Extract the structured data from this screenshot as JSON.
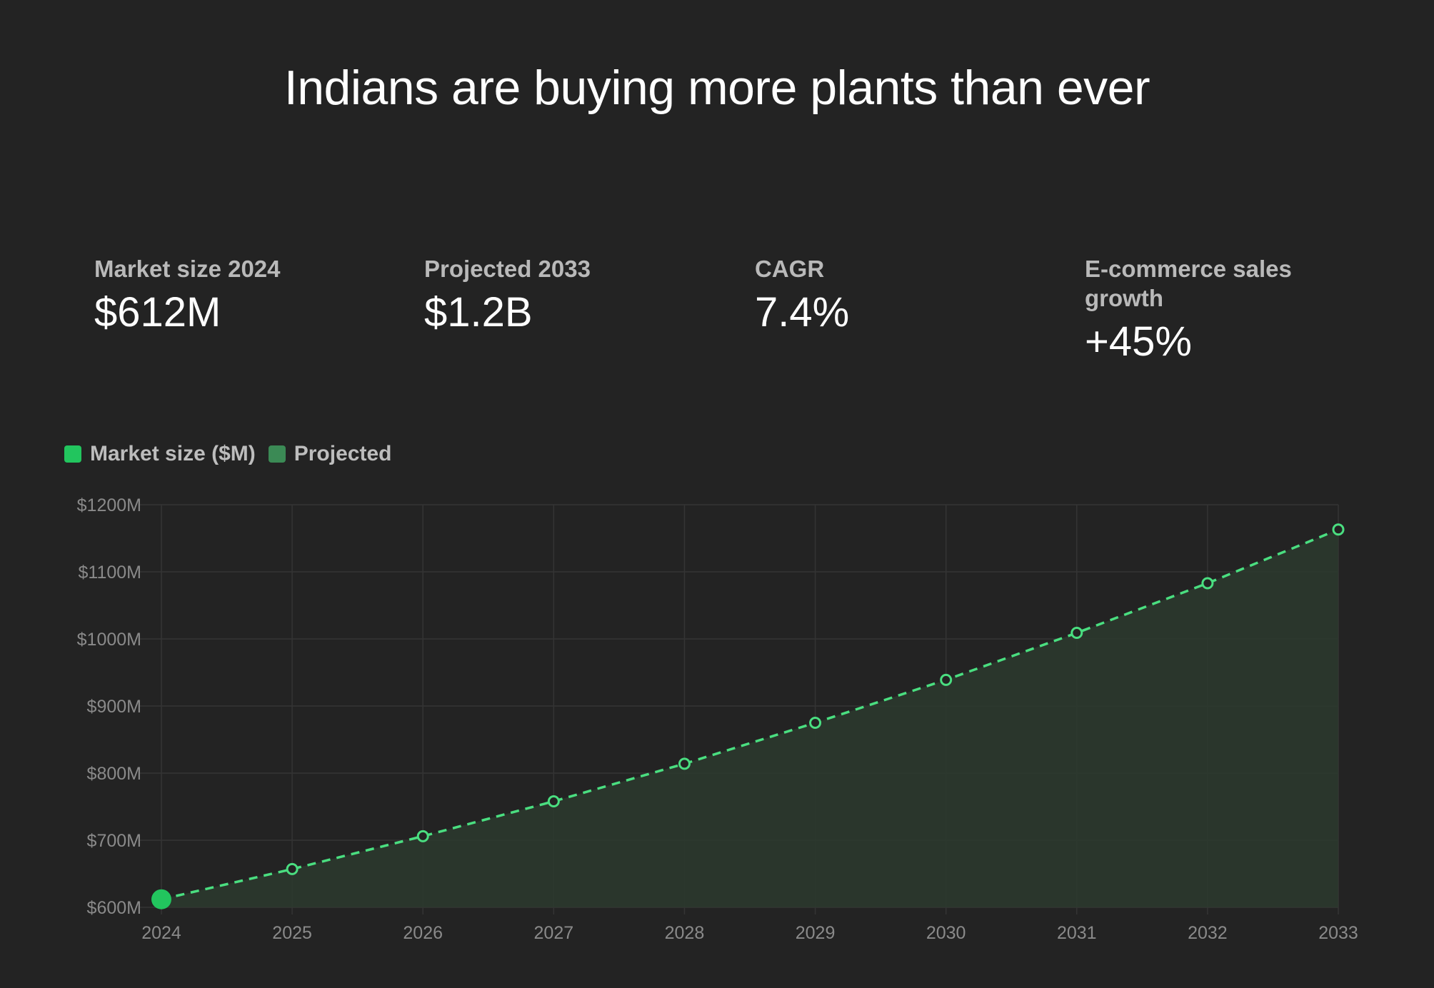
{
  "title": "Indians are buying more plants than ever",
  "stats": [
    {
      "label": "Market size 2024",
      "value": "$612M"
    },
    {
      "label": "Projected 2033",
      "value": "$1.2B"
    },
    {
      "label": "CAGR",
      "value": "7.4%"
    },
    {
      "label": "E-commerce sales growth",
      "value": "+45%"
    }
  ],
  "legend": {
    "items": [
      {
        "label": "Market size ($M)",
        "color": "#22c55e"
      },
      {
        "label": "Projected",
        "color": "#3b8a55"
      }
    ]
  },
  "colors": {
    "background": "#232323",
    "line": "#4ade80",
    "actual_point": "#22c55e",
    "area_fill": "#2b3a2e",
    "grid": "#343434"
  },
  "chart_data": {
    "type": "line",
    "title": "",
    "xlabel": "",
    "ylabel": "",
    "x": [
      "2024",
      "2025",
      "2026",
      "2027",
      "2028",
      "2029",
      "2030",
      "2031",
      "2032",
      "2033"
    ],
    "y_ticks": [
      "$600M",
      "$700M",
      "$800M",
      "$900M",
      "$1000M",
      "$1100M",
      "$1200M"
    ],
    "y_tick_values": [
      600,
      700,
      800,
      900,
      1000,
      1100,
      1200
    ],
    "ylim": [
      600,
      1200
    ],
    "grid": true,
    "series": [
      {
        "name": "Market size ($M)",
        "values": [
          612,
          null,
          null,
          null,
          null,
          null,
          null,
          null,
          null,
          null
        ]
      },
      {
        "name": "Projected",
        "values": [
          612,
          657,
          706,
          758,
          814,
          875,
          939,
          1009,
          1083,
          1163
        ],
        "style": "dashed"
      }
    ]
  }
}
